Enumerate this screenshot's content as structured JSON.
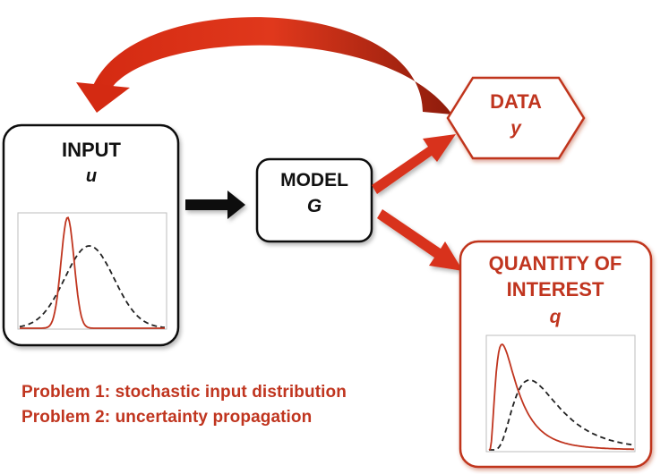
{
  "input": {
    "title": "INPUT",
    "symbol": "u"
  },
  "model": {
    "title": "MODEL",
    "symbol": "G"
  },
  "data_node": {
    "title": "DATA",
    "symbol": "y"
  },
  "qoi": {
    "title_line1": "QUANTITY OF",
    "title_line2": "INTEREST",
    "symbol": "q"
  },
  "problems": [
    "Problem 1: stochastic input distribution",
    "Problem 2: uncertainty propagation"
  ],
  "colors": {
    "accent_red": "#c0351f",
    "arrow_red": "#d8321a",
    "arrow_black": "#111111",
    "box_border": "#111111",
    "plot_frame": "#bdbdbd"
  }
}
